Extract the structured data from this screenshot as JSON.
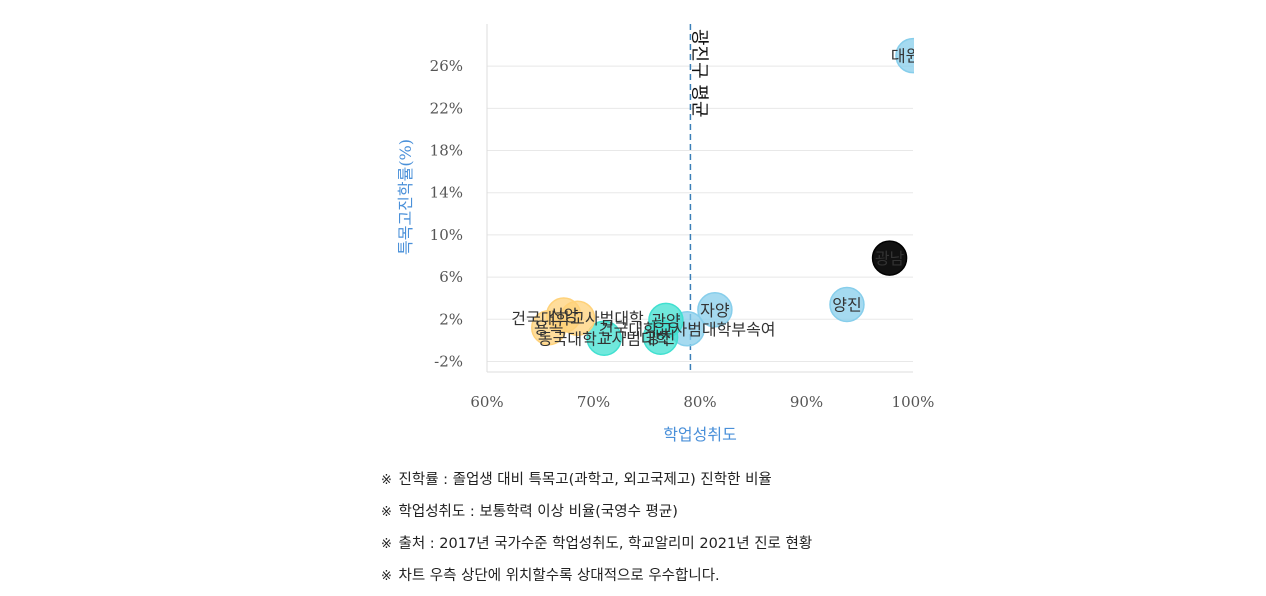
{
  "chart_data": {
    "type": "scatter",
    "xlabel": "학업성취도",
    "ylabel": "특목고진학률(%)",
    "xlim": [
      60,
      100
    ],
    "ylim": [
      -3,
      30
    ],
    "x_ticks": [
      60,
      70,
      80,
      90,
      100
    ],
    "x_tick_labels": [
      "60%",
      "70%",
      "80%",
      "90%",
      "100%"
    ],
    "y_ticks": [
      -2,
      2,
      6,
      10,
      14,
      18,
      22,
      26
    ],
    "y_tick_labels": [
      "-2%",
      "2%",
      "6%",
      "10%",
      "14%",
      "18%",
      "22%",
      "26%"
    ],
    "grid": "horizontal",
    "reference_line": {
      "x": 79.1,
      "label": "광진구 평균",
      "style": "dashed"
    },
    "points": [
      {
        "label": "대원국",
        "x": 100,
        "y": 27,
        "color": "#87ceeb"
      },
      {
        "label": "광남",
        "x": 97.8,
        "y": 7.8,
        "color": "#111111",
        "label_color": "#ffffff"
      },
      {
        "label": "양진",
        "x": 93.8,
        "y": 3.4,
        "color": "#87ceeb"
      },
      {
        "label": "자양",
        "x": 81.4,
        "y": 2.9,
        "color": "#87ceeb"
      },
      {
        "label": "건국대학교사범대학부속여",
        "x": 78.8,
        "y": 1.1,
        "color": "#87ceeb"
      },
      {
        "label": "광양",
        "x": 76.8,
        "y": 1.9,
        "color": "#40e0d0"
      },
      {
        "label": "광진",
        "x": 76.3,
        "y": 0.3,
        "color": "#40e0d0"
      },
      {
        "label": "동국대학교사범대학",
        "x": 71.0,
        "y": 0.2,
        "color": "#40e0d0"
      },
      {
        "label": "건국대학교사범대학",
        "x": 68.5,
        "y": 2.1,
        "color": "#ffd27a"
      },
      {
        "label": "신양",
        "x": 67.2,
        "y": 2.4,
        "color": "#ffd27a"
      },
      {
        "label": "용곡",
        "x": 65.8,
        "y": 1.2,
        "color": "#ffd27a"
      }
    ]
  },
  "notes": [
    {
      "mark": "※",
      "text": "진학률 : 졸업생 대비 특목고(과학고, 외고국제고) 진학한 비율"
    },
    {
      "mark": "※",
      "text": "학업성취도 : 보통학력 이상 비율(국영수 평균)"
    },
    {
      "mark": "※",
      "text": "출처 : 2017년 국가수준 학업성취도, 학교알리미 2021년 진로 현황"
    },
    {
      "mark": "※",
      "text": "차트 우측 상단에 위치할수록 상대적으로 우수합니다."
    }
  ]
}
